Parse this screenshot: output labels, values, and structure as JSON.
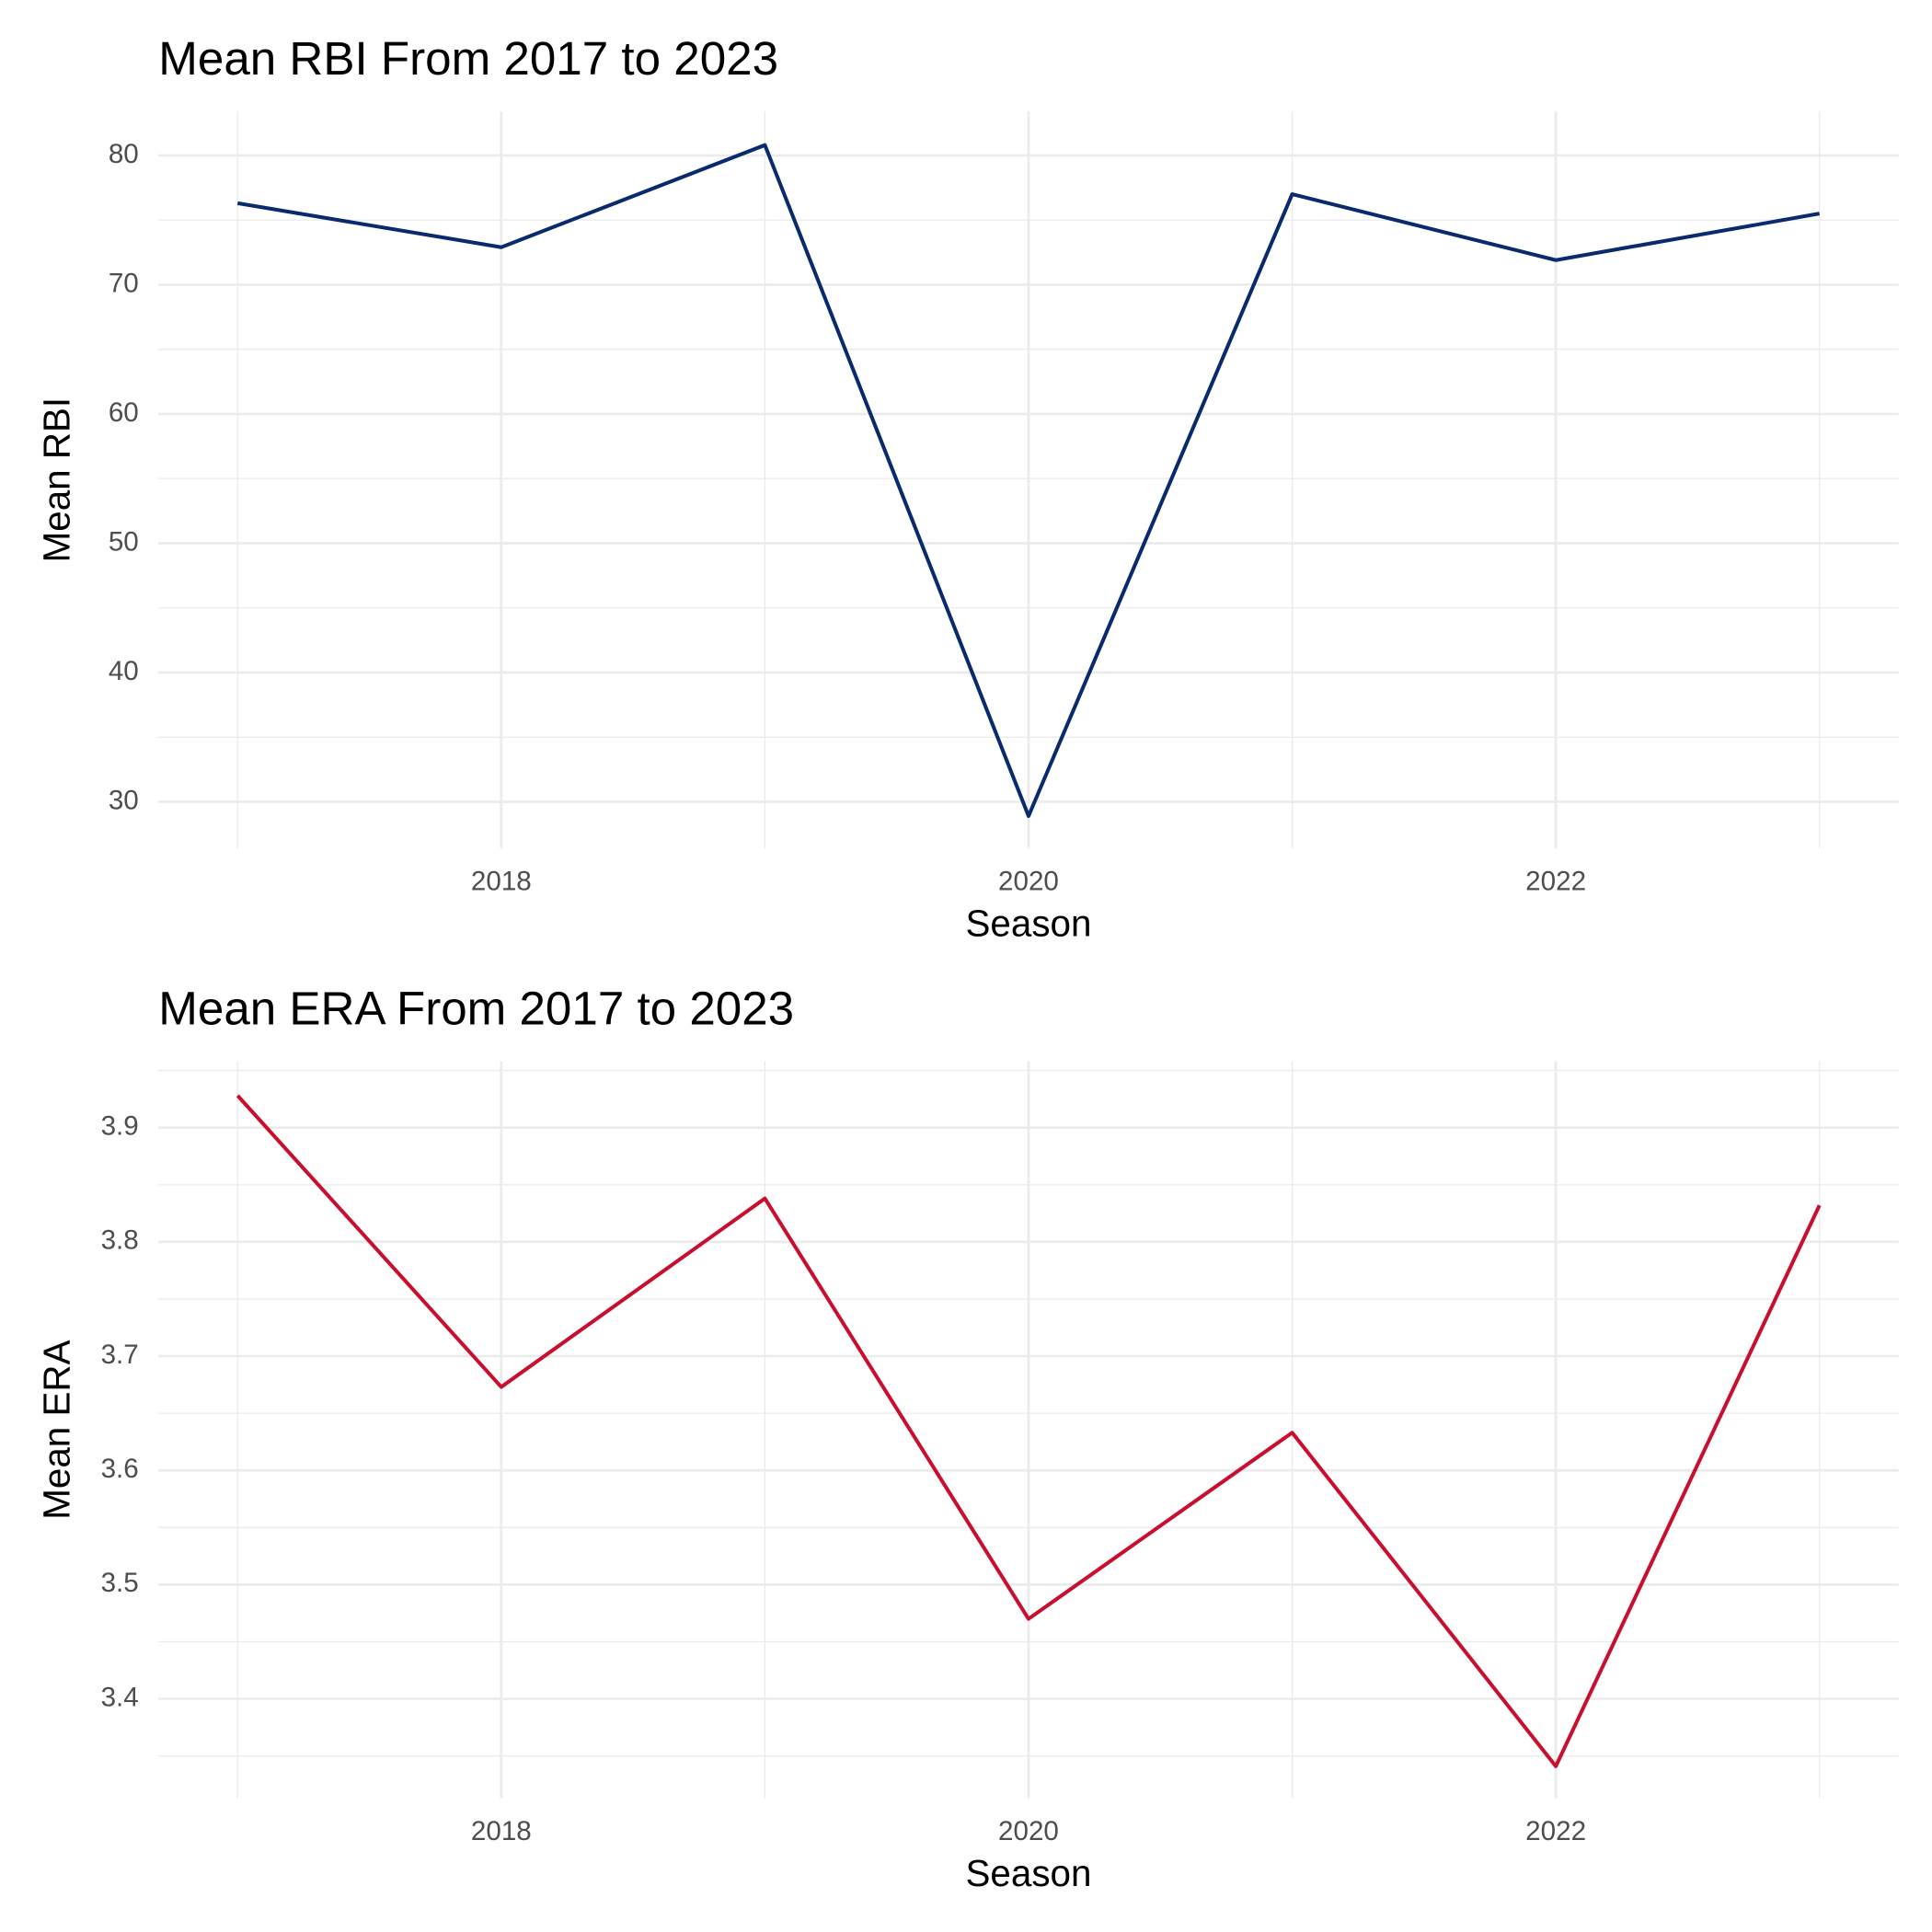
{
  "chart_data": [
    {
      "type": "line",
      "title": "Mean RBI From 2017 to 2023",
      "x_label": "Season",
      "y_label": "Mean RBI",
      "x": [
        2017,
        2018,
        2019,
        2020,
        2021,
        2022,
        2023
      ],
      "values": [
        76.3,
        72.9,
        80.8,
        28.9,
        77.0,
        71.9,
        75.5
      ],
      "color": "#0a2a6e",
      "xlim": [
        2016.7,
        2023.3
      ],
      "xticks": [
        2018,
        2020,
        2022
      ],
      "ylim": [
        26.4,
        83.4
      ],
      "yticks": [
        30,
        40,
        50,
        60,
        70,
        80
      ],
      "grid": true
    },
    {
      "type": "line",
      "title": "Mean ERA From 2017 to 2023",
      "x_label": "Season",
      "y_label": "Mean ERA",
      "x": [
        2017,
        2018,
        2019,
        2020,
        2021,
        2022,
        2023
      ],
      "values": [
        3.928,
        3.673,
        3.838,
        3.47,
        3.633,
        3.341,
        3.832
      ],
      "color": "#c8102e",
      "xlim": [
        2016.7,
        2023.3
      ],
      "xticks": [
        2018,
        2020,
        2022
      ],
      "ylim": [
        3.313,
        3.958
      ],
      "yticks": [
        3.4,
        3.5,
        3.6,
        3.7,
        3.8,
        3.9
      ],
      "grid": true
    }
  ]
}
